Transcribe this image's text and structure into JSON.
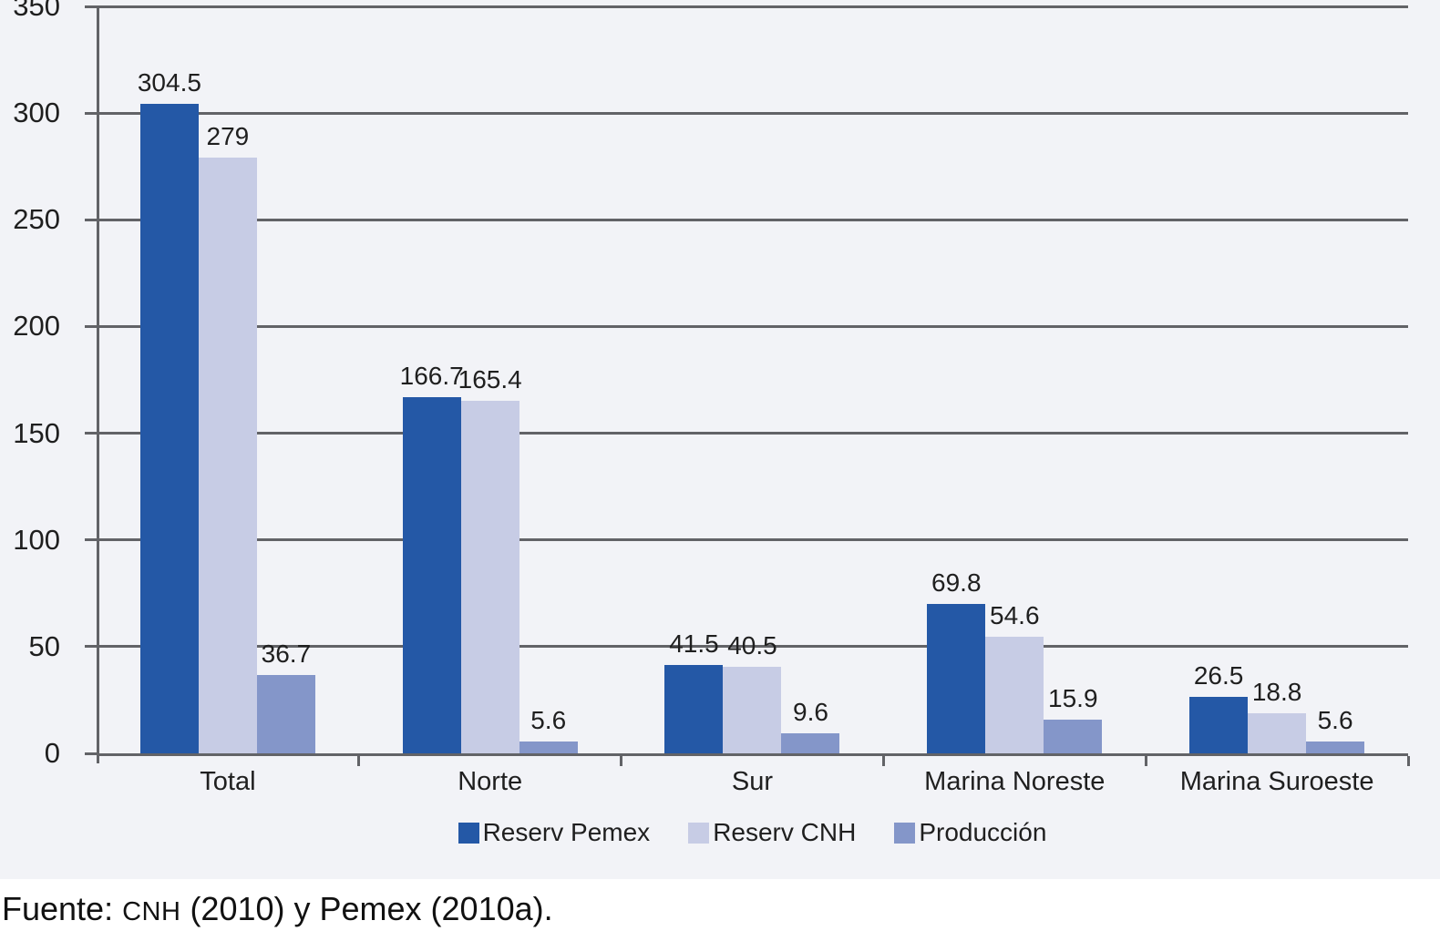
{
  "chart_data": {
    "type": "bar",
    "title": "",
    "categories": [
      "Total",
      "Norte",
      "Sur",
      "Marina Noreste",
      "Marina Suroeste"
    ],
    "series": [
      {
        "name": "Reserv Pemex",
        "color": "#2458A6",
        "values": [
          304.5,
          166.7,
          41.5,
          69.8,
          26.5
        ]
      },
      {
        "name": "Reserv CNH",
        "color": "#C7CCE5",
        "values": [
          279,
          165.4,
          40.5,
          54.6,
          18.8
        ]
      },
      {
        "name": "Producción",
        "color": "#8496C9",
        "values": [
          36.7,
          5.6,
          9.6,
          15.9,
          5.6
        ]
      }
    ],
    "ylim": [
      0,
      350
    ],
    "yticks": [
      0,
      50,
      100,
      150,
      200,
      250,
      300,
      350
    ],
    "xlabel": "",
    "ylabel": "",
    "grid": true,
    "legend_position": "bottom"
  },
  "style": {
    "plot_background": "#F2F3F7",
    "grid_color": "#626367",
    "text_color": "#1F1F1F",
    "footer_background": "#FFFFFF"
  },
  "footer": {
    "prefix": "Fuente: ",
    "smallcaps": "CNH",
    "suffix": " (2010) y Pemex (2010a)."
  }
}
